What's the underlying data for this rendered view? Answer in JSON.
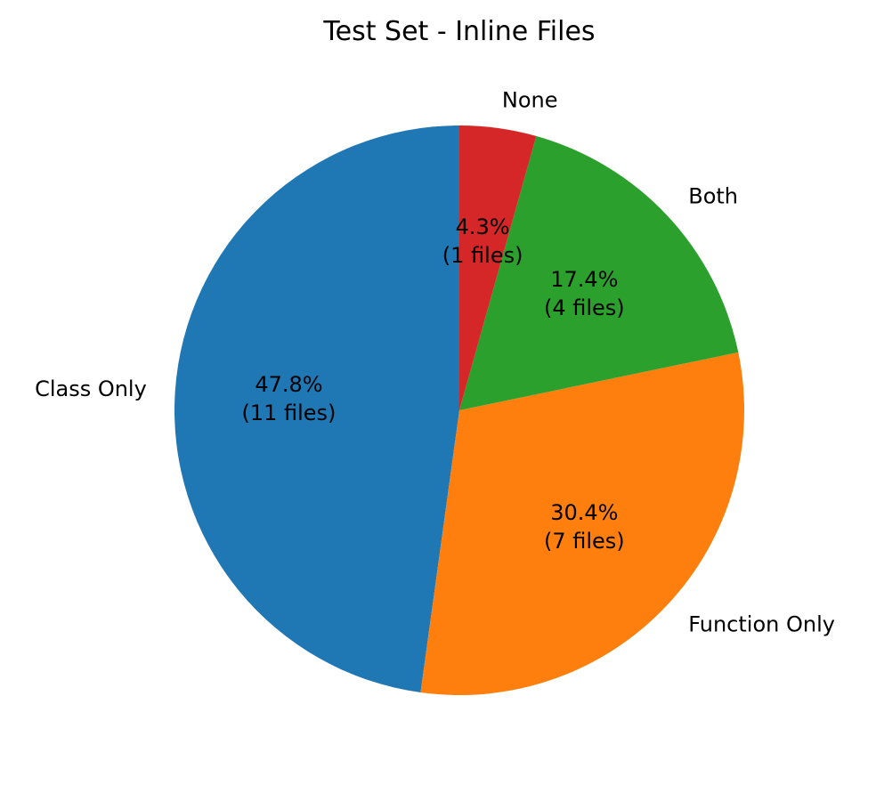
{
  "chart_data": {
    "type": "pie",
    "title": "Test Set - Inline Files",
    "categories": [
      "Class Only",
      "Function Only",
      "Both",
      "None"
    ],
    "values": [
      11,
      7,
      4,
      1
    ],
    "percent_labels": [
      "47.8%",
      "30.4%",
      "17.4%",
      "4.3%"
    ],
    "count_labels": [
      "(11 files)",
      "(7 files)",
      "(4 files)",
      "(1 files)"
    ],
    "colors": [
      "#1f77b4",
      "#ff7f0e",
      "#2ca02c",
      "#d62728"
    ],
    "start_angle_deg": 90,
    "direction": "counterclockwise"
  }
}
